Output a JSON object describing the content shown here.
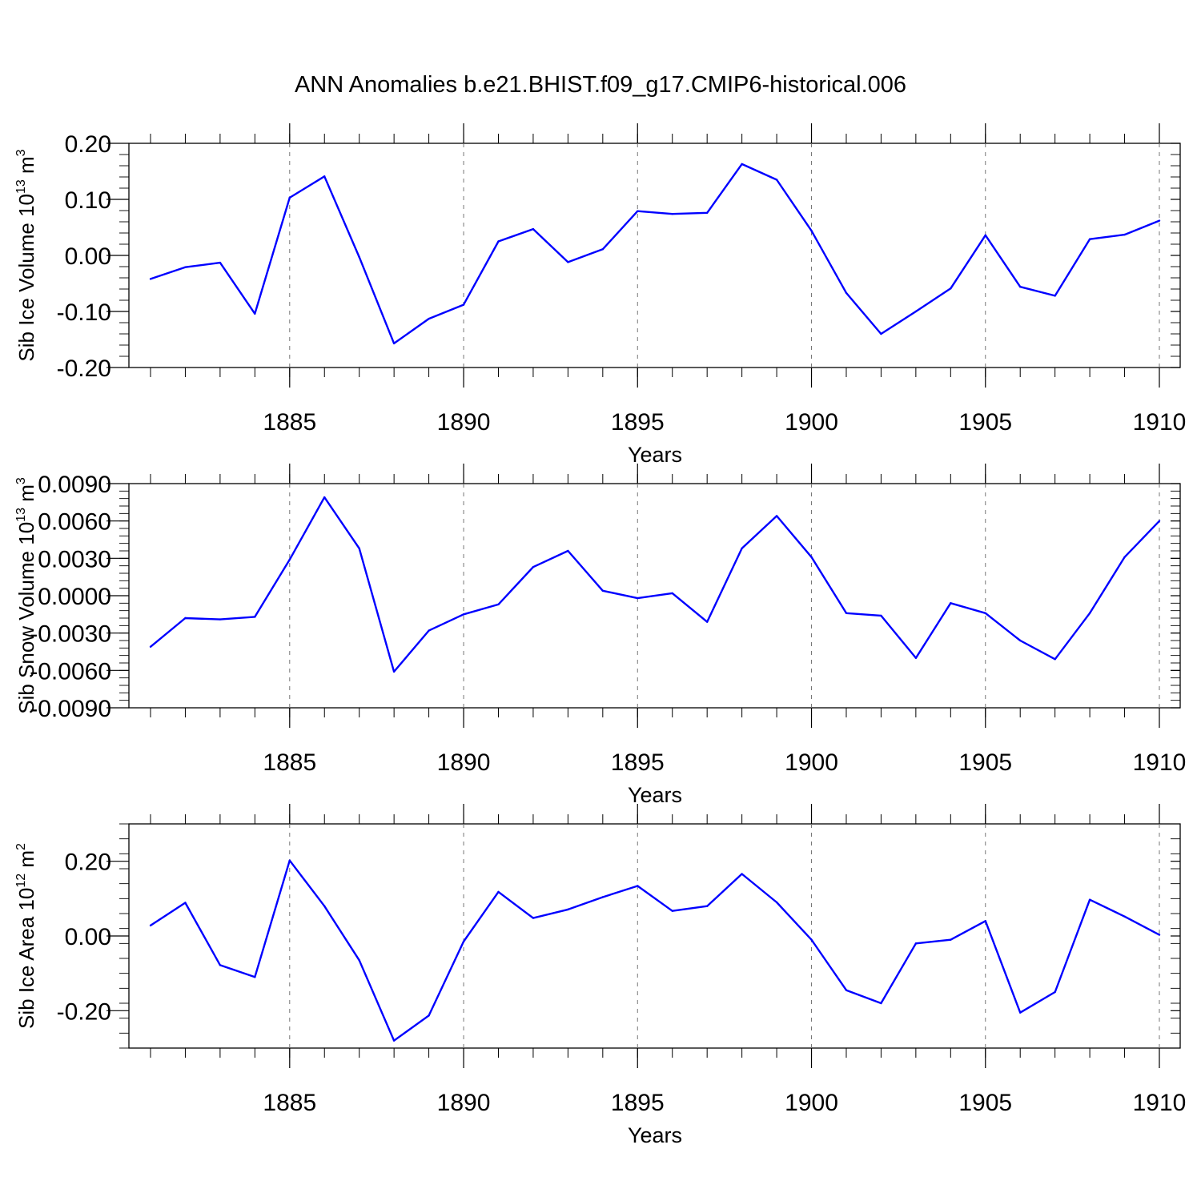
{
  "figure": {
    "title": "ANN Anomalies b.e21.BHIST.f09_g17.CMIP6-historical.006"
  },
  "chart_data": [
    {
      "type": "line",
      "title": "ANN Anomalies b.e21.BHIST.f09_g17.CMIP6-historical.006",
      "xlabel": "Years",
      "ylabel": "Sib Ice Volume 10",
      "ylabel_exponent": "13",
      "ylabel_unit": "m",
      "ylabel_unit_exponent": "3",
      "xlim": [
        1881,
        1910
      ],
      "ylim": [
        -0.2,
        0.2
      ],
      "xticks": [
        "1885",
        "1890",
        "1895",
        "1900",
        "1905",
        "1910"
      ],
      "yticks": [
        "0.20",
        "0.10",
        "0.00",
        "-0.10",
        "-0.20"
      ],
      "line_color": "#0000ff",
      "x": [
        1881,
        1882,
        1883,
        1884,
        1885,
        1886,
        1887,
        1888,
        1889,
        1890,
        1891,
        1892,
        1893,
        1894,
        1895,
        1896,
        1897,
        1898,
        1899,
        1900,
        1901,
        1902,
        1903,
        1904,
        1905,
        1906,
        1907,
        1908,
        1909,
        1910
      ],
      "values": [
        -0.042,
        -0.021,
        -0.013,
        -0.104,
        0.103,
        0.141,
        -0.003,
        -0.157,
        -0.113,
        -0.088,
        0.025,
        0.047,
        -0.012,
        0.011,
        0.079,
        0.074,
        0.076,
        0.163,
        0.135,
        0.044,
        -0.067,
        -0.14,
        -0.1,
        -0.059,
        0.036,
        -0.056,
        -0.072,
        0.029,
        0.037,
        0.062
      ]
    },
    {
      "type": "line",
      "xlabel": "Years",
      "ylabel": "Sib Snow Volume 10",
      "ylabel_exponent": "13",
      "ylabel_unit": "m",
      "ylabel_unit_exponent": "3",
      "xlim": [
        1881,
        1910
      ],
      "ylim": [
        -0.009,
        0.009
      ],
      "xticks": [
        "1885",
        "1890",
        "1895",
        "1900",
        "1905",
        "1910"
      ],
      "yticks": [
        "0.0090",
        "0.0060",
        "0.0030",
        "0.0000",
        "-0.0030",
        "-0.0060",
        "-0.0090"
      ],
      "line_color": "#0000ff",
      "x": [
        1881,
        1882,
        1883,
        1884,
        1885,
        1886,
        1887,
        1888,
        1889,
        1890,
        1891,
        1892,
        1893,
        1894,
        1895,
        1896,
        1897,
        1898,
        1899,
        1900,
        1901,
        1902,
        1903,
        1904,
        1905,
        1906,
        1907,
        1908,
        1909,
        1910
      ],
      "values": [
        -0.0041,
        -0.0018,
        -0.0019,
        -0.0017,
        0.0029,
        0.0079,
        0.0038,
        -0.0061,
        -0.0028,
        -0.0015,
        -0.0007,
        0.0023,
        0.0036,
        0.0004,
        -0.0002,
        0.0002,
        -0.0021,
        0.0038,
        0.0064,
        0.0031,
        -0.0014,
        -0.0016,
        -0.005,
        -0.0006,
        -0.0014,
        -0.0036,
        -0.0051,
        -0.0014,
        0.0031,
        0.006
      ]
    },
    {
      "type": "line",
      "xlabel": "Years",
      "ylabel": "Sib Ice Area 10",
      "ylabel_exponent": "12",
      "ylabel_unit": "m",
      "ylabel_unit_exponent": "2",
      "xlim": [
        1881,
        1910
      ],
      "ylim": [
        -0.3,
        0.3
      ],
      "xticks": [
        "1885",
        "1890",
        "1895",
        "1900",
        "1905",
        "1910"
      ],
      "yticks": [
        "0.20",
        "0.00",
        "-0.20"
      ],
      "line_color": "#0000ff",
      "x": [
        1881,
        1882,
        1883,
        1884,
        1885,
        1886,
        1887,
        1888,
        1889,
        1890,
        1891,
        1892,
        1893,
        1894,
        1895,
        1896,
        1897,
        1898,
        1899,
        1900,
        1901,
        1902,
        1903,
        1904,
        1905,
        1906,
        1907,
        1908,
        1909,
        1910
      ],
      "values": [
        0.028,
        0.089,
        -0.078,
        -0.11,
        0.202,
        0.08,
        -0.065,
        -0.28,
        -0.213,
        -0.015,
        0.118,
        0.048,
        0.071,
        0.104,
        0.134,
        0.067,
        0.08,
        0.166,
        0.09,
        -0.01,
        -0.145,
        -0.18,
        -0.02,
        -0.01,
        0.04,
        -0.205,
        -0.15,
        0.097,
        0.052,
        0.003
      ]
    }
  ]
}
